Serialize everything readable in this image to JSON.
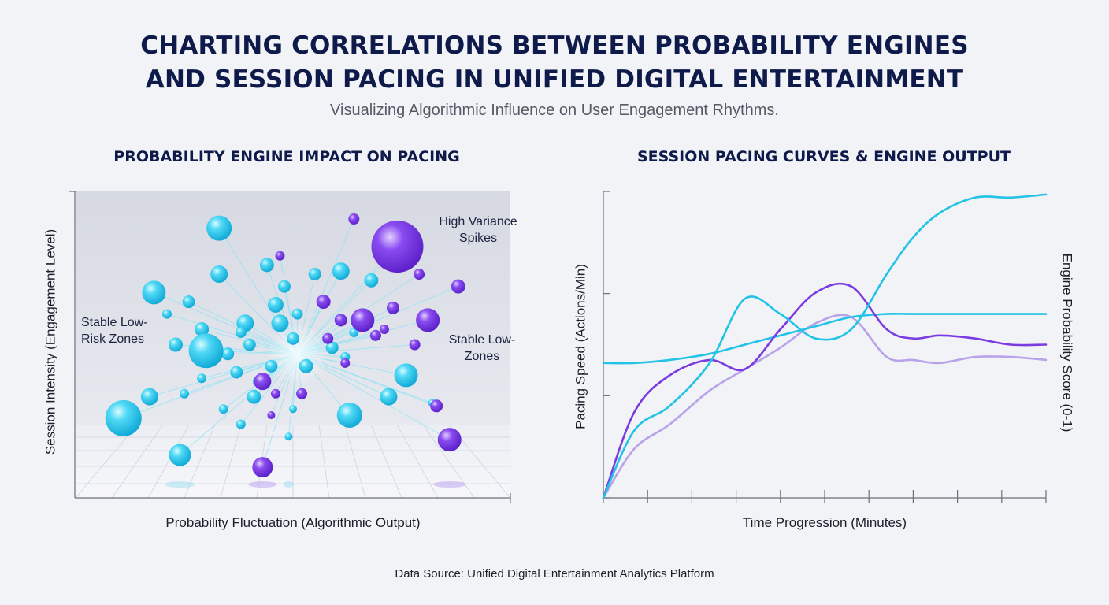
{
  "title_line1": "CHARTING CORRELATIONS BETWEEN PROBABILITY ENGINES",
  "title_line2": "AND SESSION PACING IN UNIFIED DIGITAL ENTERTAINMENT",
  "subtitle": "Visualizing Algorithmic Influence on User Engagement Rhythms.",
  "source": "Data Source: Unified Digital Entertainment Analytics Platform",
  "colors": {
    "cyan": "#22c3e6",
    "purple": "#7a3be0",
    "lavender": "#b9a2ea",
    "title": "#0e1a4a"
  },
  "chart_data": [
    {
      "type": "scatter",
      "title": "PROBABILITY ENGINE IMPACT ON PACING",
      "xlabel": "Probability Fluctuation (Algorithmic Output)",
      "ylabel": "Session Intensity (Engagement Level)",
      "xlim": [
        0,
        1
      ],
      "ylim": [
        0,
        1
      ],
      "grid": true,
      "annotations": [
        {
          "id": "high",
          "text": "High Variance Spikes"
        },
        {
          "id": "stable_left",
          "text": "Stable Low-Risk Zones"
        },
        {
          "id": "stable_right",
          "text": "Stable Low-Zones"
        }
      ],
      "hub": [
        0.51,
        0.47
      ],
      "series": [
        {
          "color_key": "cyan",
          "points": [
            [
              0.33,
              0.88,
              16
            ],
            [
              0.18,
              0.67,
              15
            ],
            [
              0.33,
              0.73,
              11
            ],
            [
              0.26,
              0.64,
              8
            ],
            [
              0.21,
              0.6,
              6
            ],
            [
              0.29,
              0.55,
              9
            ],
            [
              0.39,
              0.57,
              11
            ],
            [
              0.46,
              0.63,
              10
            ],
            [
              0.48,
              0.69,
              8
            ],
            [
              0.44,
              0.76,
              9
            ],
            [
              0.55,
              0.73,
              8
            ],
            [
              0.61,
              0.74,
              11
            ],
            [
              0.68,
              0.71,
              9
            ],
            [
              0.35,
              0.47,
              8
            ],
            [
              0.38,
              0.54,
              7
            ],
            [
              0.3,
              0.48,
              22
            ],
            [
              0.23,
              0.5,
              9
            ],
            [
              0.4,
              0.5,
              8
            ],
            [
              0.47,
              0.57,
              11
            ],
            [
              0.5,
              0.52,
              8
            ],
            [
              0.51,
              0.6,
              7
            ],
            [
              0.57,
              0.64,
              6
            ],
            [
              0.53,
              0.43,
              9
            ],
            [
              0.45,
              0.43,
              8
            ],
            [
              0.42,
              0.38,
              7
            ],
            [
              0.37,
              0.41,
              8
            ],
            [
              0.29,
              0.39,
              6
            ],
            [
              0.25,
              0.34,
              6
            ],
            [
              0.17,
              0.33,
              11
            ],
            [
              0.11,
              0.26,
              23
            ],
            [
              0.34,
              0.29,
              6
            ],
            [
              0.41,
              0.33,
              9
            ],
            [
              0.59,
              0.49,
              8
            ],
            [
              0.62,
              0.46,
              6
            ],
            [
              0.64,
              0.54,
              6
            ],
            [
              0.76,
              0.4,
              15
            ],
            [
              0.72,
              0.33,
              11
            ],
            [
              0.63,
              0.27,
              16
            ],
            [
              0.38,
              0.24,
              6
            ],
            [
              0.5,
              0.29,
              5
            ],
            [
              0.24,
              0.14,
              14
            ],
            [
              0.49,
              0.2,
              5
            ],
            [
              0.82,
              0.31,
              5
            ]
          ]
        },
        {
          "color_key": "purple",
          "points": [
            [
              0.74,
              0.82,
              33
            ],
            [
              0.64,
              0.91,
              7
            ],
            [
              0.47,
              0.79,
              6
            ],
            [
              0.57,
              0.64,
              9
            ],
            [
              0.61,
              0.58,
              8
            ],
            [
              0.58,
              0.52,
              7
            ],
            [
              0.66,
              0.58,
              15
            ],
            [
              0.69,
              0.53,
              7
            ],
            [
              0.73,
              0.62,
              8
            ],
            [
              0.81,
              0.58,
              15
            ],
            [
              0.79,
              0.73,
              7
            ],
            [
              0.88,
              0.69,
              9
            ],
            [
              0.78,
              0.5,
              7
            ],
            [
              0.71,
              0.55,
              6
            ],
            [
              0.62,
              0.44,
              6
            ],
            [
              0.43,
              0.38,
              11
            ],
            [
              0.46,
              0.34,
              6
            ],
            [
              0.52,
              0.34,
              7
            ],
            [
              0.45,
              0.27,
              5
            ],
            [
              0.83,
              0.3,
              8
            ],
            [
              0.86,
              0.19,
              15
            ],
            [
              0.43,
              0.1,
              13
            ]
          ]
        }
      ]
    },
    {
      "type": "line",
      "title": "SESSION PACING CURVES & ENGINE OUTPUT",
      "xlabel": "Time Progression (Minutes)",
      "ylabel": "Pacing Speed (Actions/Min)",
      "y2label": "Engine Probability Score (0-1)",
      "xlim": [
        0,
        10
      ],
      "ylim": [
        0,
        1
      ],
      "x": [
        0,
        0.7,
        1.5,
        2.4,
        3.2,
        4.0,
        4.8,
        5.6,
        6.4,
        7.0,
        7.6,
        8.4,
        9.2,
        10
      ],
      "series": [
        {
          "color_key": "cyan",
          "values": [
            0,
            0.22,
            0.3,
            0.44,
            0.65,
            0.6,
            0.52,
            0.55,
            0.73,
            0.85,
            0.93,
            0.98,
            0.98,
            0.99
          ]
        },
        {
          "color_key": "purple",
          "values": [
            0,
            0.28,
            0.4,
            0.45,
            0.42,
            0.55,
            0.67,
            0.69,
            0.55,
            0.52,
            0.53,
            0.52,
            0.5,
            0.5
          ]
        },
        {
          "color_key": "lavender",
          "values": [
            0,
            0.16,
            0.24,
            0.35,
            0.42,
            0.49,
            0.57,
            0.59,
            0.46,
            0.45,
            0.44,
            0.46,
            0.46,
            0.45
          ]
        },
        {
          "color_key": "cyan",
          "values": [
            0.44,
            0.44,
            0.45,
            0.47,
            0.5,
            0.53,
            0.56,
            0.59,
            0.6,
            0.6,
            0.6,
            0.6,
            0.6,
            0.6
          ]
        }
      ]
    }
  ]
}
